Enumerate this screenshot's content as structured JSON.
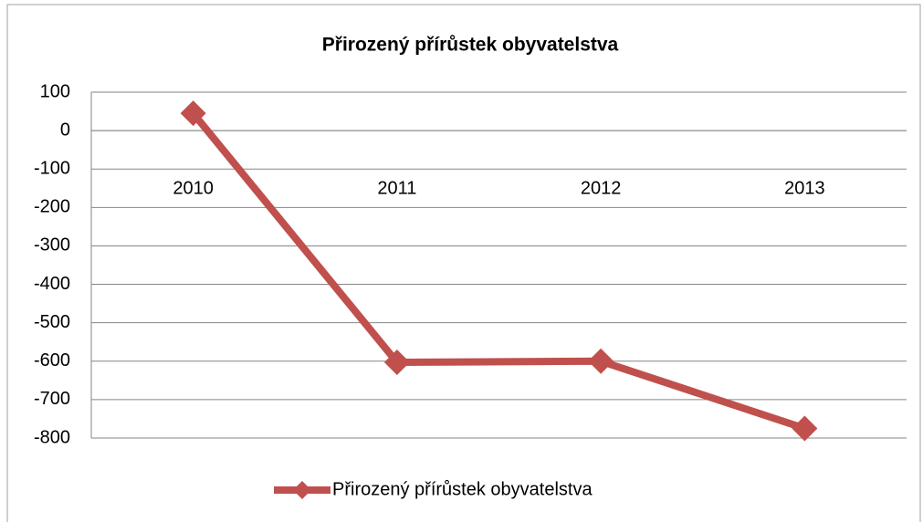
{
  "chart_data": {
    "type": "line",
    "title": "Přirozený přírůstek obyvatelstva",
    "categories": [
      "2010",
      "2011",
      "2012",
      "2013"
    ],
    "series": [
      {
        "name": "Přirozený přírůstek obyvatelstva",
        "color": "#c0504d",
        "values": [
          45,
          -603,
          -600,
          -775
        ]
      }
    ],
    "ylim": [
      -800,
      100
    ],
    "yticks": [
      -800,
      -700,
      -600,
      -500,
      -400,
      -300,
      -200,
      -100,
      0,
      100
    ],
    "grid": true,
    "legend": "bottom"
  }
}
